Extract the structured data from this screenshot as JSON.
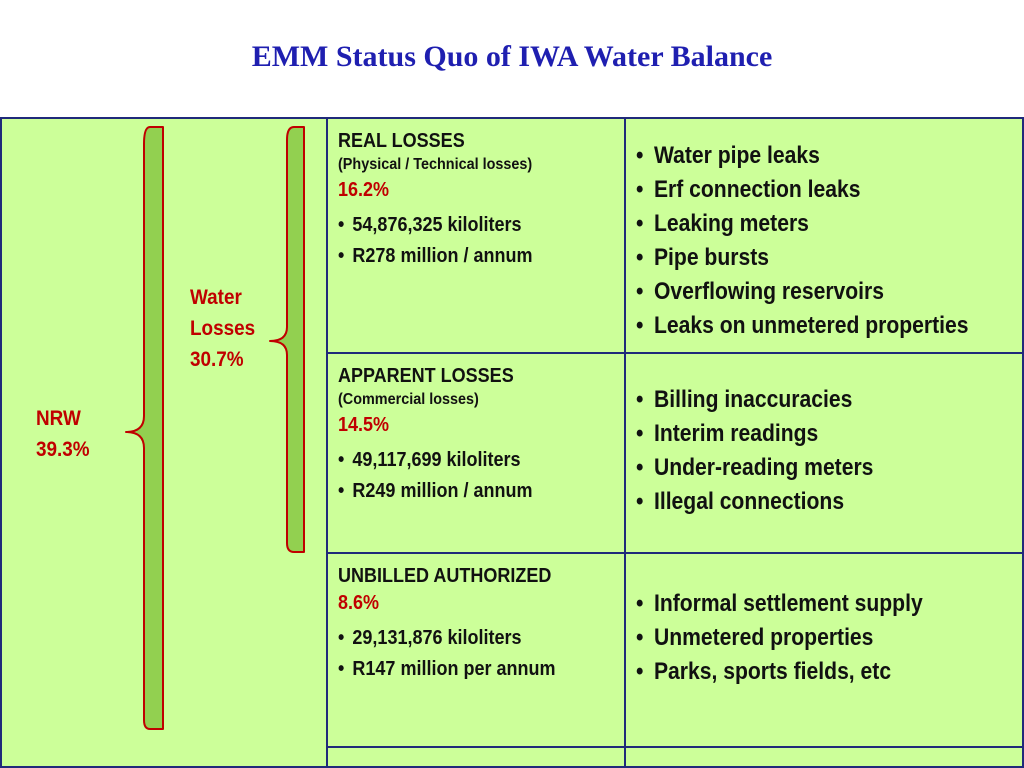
{
  "title": "EMM Status Quo of IWA Water Balance",
  "labels": {
    "nrw_name": "NRW",
    "nrw_pct": "39.3%",
    "water_losses_line1": "Water",
    "water_losses_line2": "Losses",
    "water_losses_pct": "30.7%"
  },
  "rows": [
    {
      "heading": "REAL LOSSES",
      "sub": "(Physical / Technical losses)",
      "pct": "16.2%",
      "stats": [
        "54,876,325 kiloliters",
        "R278 million / annum"
      ],
      "causes": [
        "Water pipe  leaks",
        "Erf connection leaks",
        "Leaking meters",
        "Pipe bursts",
        "Overflowing reservoirs",
        "Leaks on unmetered properties"
      ]
    },
    {
      "heading": "APPARENT LOSSES",
      "sub": "(Commercial losses)",
      "pct": "14.5%",
      "stats": [
        "49,117,699 kiloliters",
        "R249 million / annum"
      ],
      "causes": [
        "Billing inaccuracies",
        "Interim readings",
        "Under-reading meters",
        "Illegal connections"
      ]
    },
    {
      "heading": "UNBILLED AUTHORIZED",
      "pct": "8.6%",
      "stats": [
        "29,131,876 kiloliters",
        "R147 million per annum"
      ],
      "causes": [
        "Informal settlement supply",
        "Unmetered properties",
        "Parks, sports fields, etc"
      ]
    }
  ],
  "colors": {
    "cell_fill": "#ccff99",
    "cell_border": "#1f2a7a",
    "title": "#1f1fb0",
    "accent_red": "#c00000",
    "brace_fill": "#92d050",
    "brace_stroke": "#c00000"
  }
}
